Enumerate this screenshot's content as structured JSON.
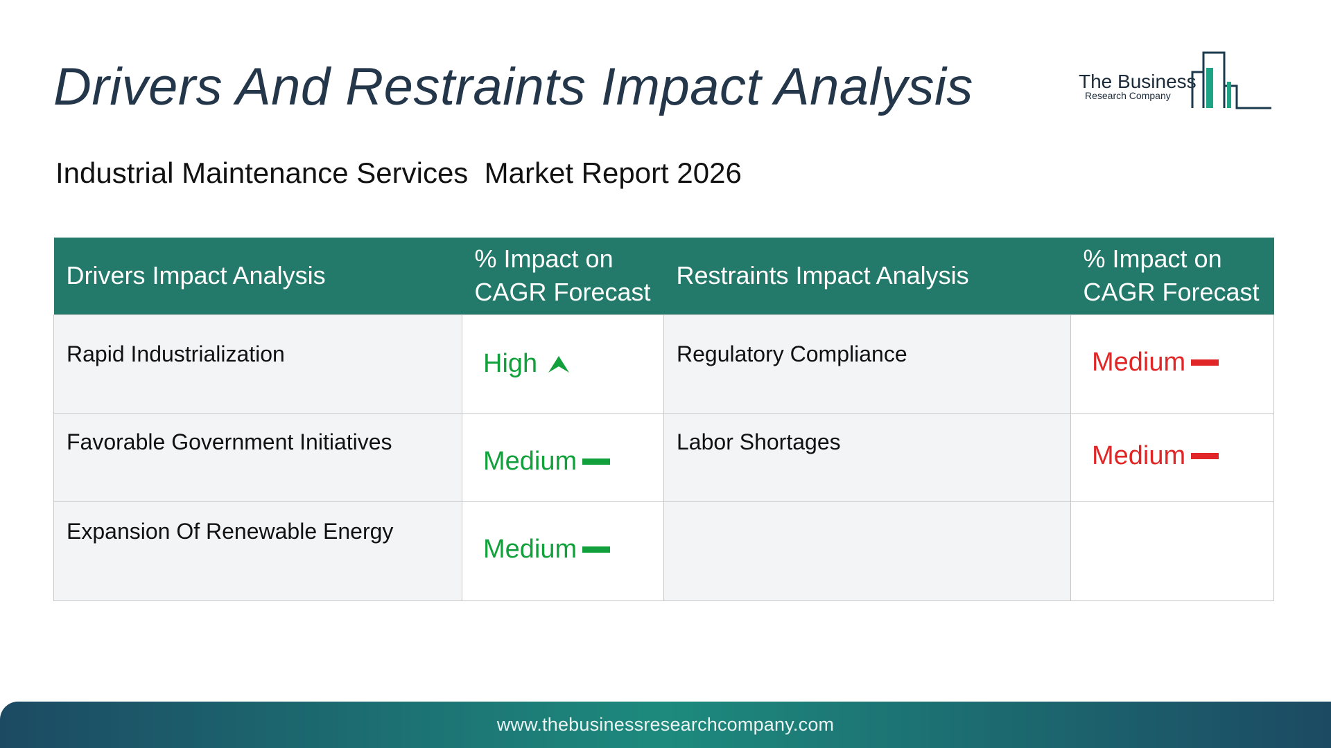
{
  "header": {
    "title": "Drivers And Restraints Impact Analysis",
    "subtitle": "Industrial Maintenance Services  Market Report 2026"
  },
  "logo": {
    "line1": "The Business",
    "line2": "Research Company"
  },
  "table": {
    "headers": {
      "drivers": "Drivers Impact Analysis",
      "drivers_impact": "% Impact on CAGR Forecast",
      "restraints": "Restraints Impact Analysis",
      "restraints_impact": "% Impact on CAGR Forecast"
    },
    "rows": [
      {
        "driver": "Rapid Industrialization",
        "driver_impact": "High",
        "driver_indicator": "up-arrow-icon",
        "restraint": "Regulatory Compliance",
        "restraint_impact": "Medium",
        "restraint_indicator": "dash-icon"
      },
      {
        "driver": "Favorable Government Initiatives",
        "driver_impact": "Medium",
        "driver_indicator": "dash-icon",
        "restraint": "Labor Shortages",
        "restraint_impact": "Medium",
        "restraint_indicator": "dash-icon"
      },
      {
        "driver": "Expansion Of Renewable Energy",
        "driver_impact": "Medium",
        "driver_indicator": "dash-icon",
        "restraint": "",
        "restraint_impact": "",
        "restraint_indicator": ""
      }
    ]
  },
  "colors": {
    "header_bg": "#247a6a",
    "driver_impact": "#12a03c",
    "restraint_impact": "#e02626",
    "title": "#23364a"
  },
  "footer": {
    "url": "www.thebusinessresearchcompany.com"
  }
}
